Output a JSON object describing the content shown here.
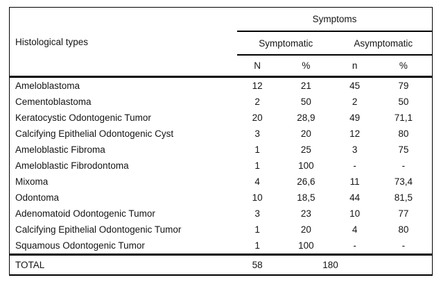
{
  "chart_data": {
    "type": "table",
    "col1_header": "Histological types",
    "span_header": "Symptoms",
    "group_headers": [
      "Symptomatic",
      "Asymptomatic"
    ],
    "sub_headers": [
      "N",
      "%",
      "n",
      "%"
    ],
    "rows": [
      {
        "label": "Ameloblastoma",
        "values": [
          "12",
          "21",
          "45",
          "79"
        ]
      },
      {
        "label": "Cementoblastoma",
        "values": [
          "2",
          "50",
          "2",
          "50"
        ]
      },
      {
        "label": "Keratocystic Odontogenic Tumor",
        "values": [
          "20",
          "28,9",
          "49",
          "71,1"
        ]
      },
      {
        "label": "Calcifying Epithelial Odontogenic Cyst",
        "values": [
          "3",
          "20",
          "12",
          "80"
        ]
      },
      {
        "label": "Ameloblastic Fibroma",
        "values": [
          "1",
          "25",
          "3",
          "75"
        ]
      },
      {
        "label": "Ameloblastic Fibrodontoma",
        "values": [
          "1",
          "100",
          "-",
          "-"
        ]
      },
      {
        "label": "Mixoma",
        "values": [
          "4",
          "26,6",
          "11",
          "73,4"
        ]
      },
      {
        "label": "Odontoma",
        "values": [
          "10",
          "18,5",
          "44",
          "81,5"
        ]
      },
      {
        "label": "Adenomatoid Odontogenic Tumor",
        "values": [
          "3",
          "23",
          "10",
          "77"
        ]
      },
      {
        "label": "Calcifying Epithelial Odontogenic Tumor",
        "values": [
          "1",
          "20",
          "4",
          "80"
        ]
      },
      {
        "label": "Squamous Odontogenic Tumor",
        "values": [
          "1",
          "100",
          "-",
          "-"
        ]
      }
    ],
    "total_row": {
      "label": "TOTAL",
      "symptomatic_total": "58",
      "asymptomatic_total": "180"
    }
  },
  "colors": {
    "border": "#000000",
    "text": "#141414",
    "background": "#ffffff"
  }
}
